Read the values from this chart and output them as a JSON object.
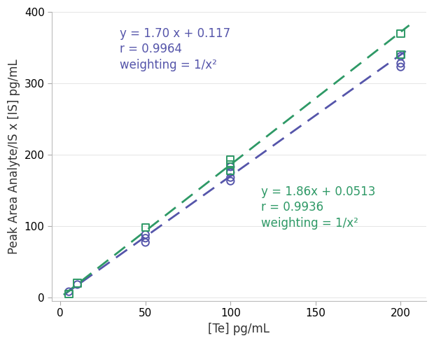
{
  "title": "",
  "xlabel": "[Te] pg/mL",
  "ylabel": "Peak Area Analyte/IS x [IS] pg/mL",
  "xlim": [
    -5,
    215
  ],
  "ylim": [
    -5,
    400
  ],
  "xticks": [
    0,
    50,
    100,
    150,
    200
  ],
  "yticks": [
    0,
    100,
    200,
    300,
    400
  ],
  "purple_color": "#5555aa",
  "green_color": "#2e9966",
  "purple_eq": "y = 1.70 x + 0.117",
  "purple_r": "r = 0.9964",
  "purple_weight": "weighting = 1/x²",
  "green_eq": "y = 1.86x + 0.0513",
  "green_r": "r = 0.9936",
  "green_weight": "weighting = 1/x²",
  "purple_slope": 1.7,
  "purple_intercept": 0.117,
  "green_slope": 1.86,
  "green_intercept": 0.0513,
  "x_data_purple": [
    5,
    10,
    50,
    50,
    50,
    100,
    100,
    100,
    100,
    200,
    200,
    200
  ],
  "y_data_purple": [
    8,
    18,
    77,
    83,
    88,
    163,
    168,
    175,
    183,
    323,
    328,
    338
  ],
  "x_data_green": [
    5,
    10,
    50,
    100,
    100,
    100,
    200,
    200
  ],
  "y_data_green": [
    5,
    20,
    98,
    178,
    186,
    193,
    340,
    370
  ],
  "bg_color": "#ffffff",
  "label_fontsize": 12,
  "tick_fontsize": 11,
  "eq_fontsize": 12,
  "purple_ann_x": 35,
  "purple_ann_y1": 370,
  "purple_ann_y2": 348,
  "purple_ann_y3": 326,
  "green_ann_x": 118,
  "green_ann_y1": 148,
  "green_ann_y2": 126,
  "green_ann_y3": 104
}
